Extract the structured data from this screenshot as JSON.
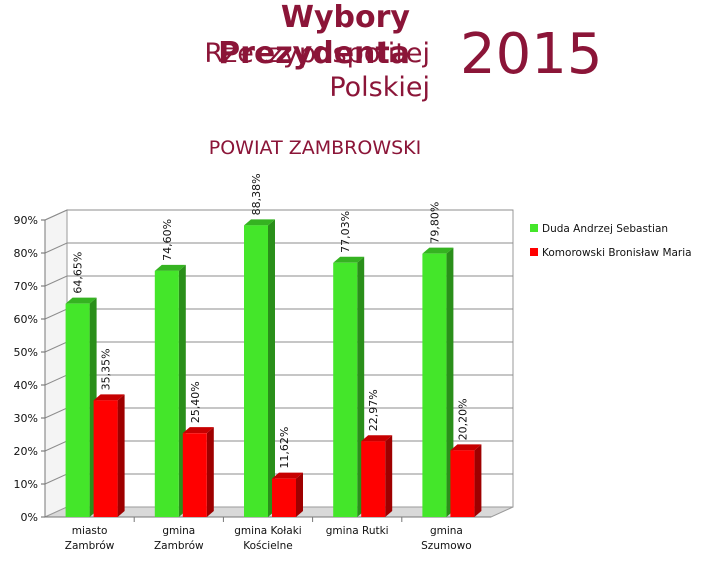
{
  "header": {
    "title": "Wybory Prezydenta",
    "subtitle_line1": "Rzeczypospolitej",
    "subtitle_line2": "Polskiej",
    "year": "2015"
  },
  "colors": {
    "brand": "#8b1538",
    "duda": "#44e62a",
    "komorowski": "#ff0000"
  },
  "chart_data": {
    "type": "bar",
    "title": "POWIAT ZAMBROWSKI",
    "categories": [
      [
        "miasto",
        "Zambrów"
      ],
      [
        "gmina",
        "Zambrów"
      ],
      [
        "gmina Kołaki",
        "Kościelne"
      ],
      [
        "gmina Rutki"
      ],
      [
        "gmina",
        "Szumowo"
      ]
    ],
    "series": [
      {
        "name": "Duda Andrzej Sebastian",
        "values": [
          64.65,
          74.6,
          88.38,
          77.03,
          79.8
        ],
        "labels": [
          "64,65%",
          "74,60%",
          "88,38%",
          "77,03%",
          "79,80%"
        ]
      },
      {
        "name": "Komorowski Bronisław Maria",
        "values": [
          35.35,
          25.4,
          11.62,
          22.97,
          20.2
        ],
        "labels": [
          "35,35%",
          "25,40%",
          "11,62%",
          "22,97%",
          "20,20%"
        ]
      }
    ],
    "yticks": [
      "0%",
      "10%",
      "20%",
      "30%",
      "40%",
      "50%",
      "60%",
      "70%",
      "80%",
      "90%"
    ],
    "ylim": [
      0,
      90
    ],
    "grid": true,
    "legend_position": "right",
    "style": "3d"
  }
}
